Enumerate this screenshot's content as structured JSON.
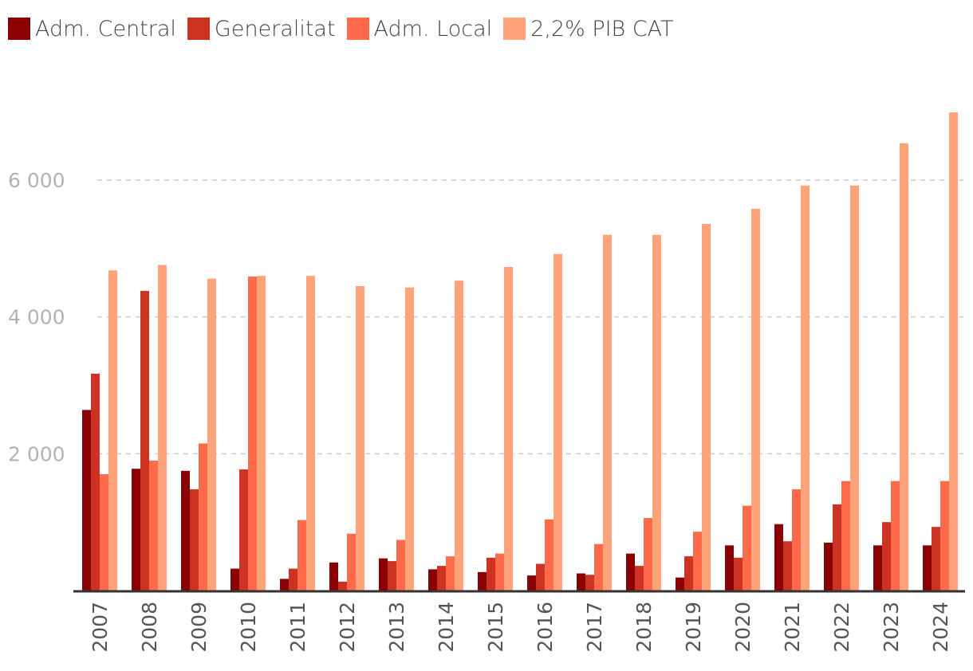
{
  "chart_data": {
    "type": "bar",
    "title": "",
    "xlabel": "",
    "ylabel": "",
    "ylim": [
      0,
      7200
    ],
    "yticks": [
      2000,
      4000,
      6000
    ],
    "ytick_labels": [
      "2 000",
      "4 000",
      "6 000"
    ],
    "grid": true,
    "legend_position": "top-left",
    "categories": [
      "2007",
      "2008",
      "2009",
      "2010",
      "2011",
      "2012",
      "2013",
      "2014",
      "2015",
      "2016",
      "2017",
      "2018",
      "2019",
      "2020",
      "2021",
      "2022",
      "2023",
      "2024"
    ],
    "series": [
      {
        "name": "Adm. Central",
        "color": "#8b0000",
        "values": [
          2640,
          1780,
          1750,
          320,
          170,
          410,
          470,
          310,
          270,
          220,
          250,
          540,
          190,
          660,
          970,
          700,
          660,
          660
        ]
      },
      {
        "name": "Generalitat",
        "color": "#cc3322",
        "values": [
          3170,
          4380,
          1480,
          1770,
          320,
          130,
          430,
          360,
          480,
          390,
          230,
          360,
          500,
          480,
          720,
          1260,
          1000,
          930
        ]
      },
      {
        "name": "Adm. Local",
        "color": "#ff6b4a",
        "values": [
          1700,
          1900,
          2150,
          4590,
          1030,
          830,
          740,
          500,
          540,
          1040,
          680,
          1060,
          860,
          1240,
          1480,
          1600,
          1600,
          1600
        ]
      },
      {
        "name": "2,2% PIB CAT",
        "color": "#ffa37a",
        "values": [
          4680,
          4760,
          4560,
          4600,
          4600,
          4450,
          4430,
          4530,
          4730,
          4920,
          5200,
          5200,
          5360,
          5580,
          5920,
          5920,
          6540,
          6990
        ]
      }
    ]
  }
}
